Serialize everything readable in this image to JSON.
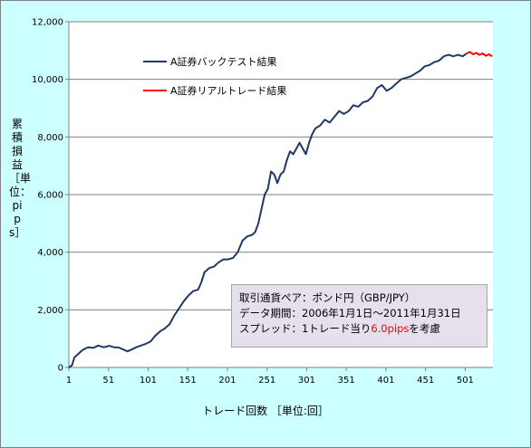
{
  "chart_data": {
    "type": "line",
    "title": "",
    "xlabel": "トレード回数 ［単位:回］",
    "ylabel": "累積損益 ［単位：pips］",
    "xlim": [
      1,
      536
    ],
    "ylim": [
      0,
      12000
    ],
    "x_ticks": [
      1,
      51,
      101,
      151,
      201,
      251,
      301,
      351,
      401,
      451,
      501
    ],
    "y_ticks": [
      0,
      2000,
      4000,
      6000,
      8000,
      10000,
      12000
    ],
    "y_tick_labels": [
      "0",
      "2,000",
      "4,000",
      "6,000",
      "8,000",
      "10,000",
      "12,000"
    ],
    "grid": "horizontal",
    "legend_position": "top-left",
    "series": [
      {
        "name": "A証券バックテスト結果",
        "color": "#1f3864",
        "points": [
          [
            1,
            0
          ],
          [
            5,
            80
          ],
          [
            8,
            350
          ],
          [
            12,
            450
          ],
          [
            18,
            600
          ],
          [
            25,
            700
          ],
          [
            32,
            680
          ],
          [
            38,
            760
          ],
          [
            45,
            700
          ],
          [
            52,
            750
          ],
          [
            58,
            700
          ],
          [
            64,
            690
          ],
          [
            70,
            620
          ],
          [
            75,
            560
          ],
          [
            80,
            620
          ],
          [
            86,
            700
          ],
          [
            92,
            760
          ],
          [
            98,
            820
          ],
          [
            104,
            900
          ],
          [
            110,
            1100
          ],
          [
            116,
            1250
          ],
          [
            122,
            1350
          ],
          [
            128,
            1500
          ],
          [
            134,
            1800
          ],
          [
            140,
            2050
          ],
          [
            146,
            2300
          ],
          [
            152,
            2500
          ],
          [
            158,
            2650
          ],
          [
            164,
            2700
          ],
          [
            168,
            2950
          ],
          [
            172,
            3300
          ],
          [
            178,
            3450
          ],
          [
            184,
            3500
          ],
          [
            190,
            3650
          ],
          [
            196,
            3750
          ],
          [
            202,
            3750
          ],
          [
            208,
            3800
          ],
          [
            214,
            4000
          ],
          [
            220,
            4400
          ],
          [
            226,
            4550
          ],
          [
            232,
            4600
          ],
          [
            236,
            4700
          ],
          [
            240,
            5000
          ],
          [
            244,
            5500
          ],
          [
            248,
            6000
          ],
          [
            252,
            6200
          ],
          [
            256,
            6800
          ],
          [
            260,
            6700
          ],
          [
            264,
            6400
          ],
          [
            268,
            6700
          ],
          [
            272,
            6800
          ],
          [
            276,
            7200
          ],
          [
            280,
            7500
          ],
          [
            284,
            7400
          ],
          [
            288,
            7600
          ],
          [
            292,
            7800
          ],
          [
            296,
            7600
          ],
          [
            300,
            7400
          ],
          [
            304,
            7800
          ],
          [
            308,
            8100
          ],
          [
            312,
            8300
          ],
          [
            318,
            8400
          ],
          [
            324,
            8600
          ],
          [
            330,
            8500
          ],
          [
            336,
            8700
          ],
          [
            342,
            8900
          ],
          [
            348,
            8800
          ],
          [
            354,
            8900
          ],
          [
            360,
            9100
          ],
          [
            366,
            9050
          ],
          [
            372,
            9200
          ],
          [
            378,
            9250
          ],
          [
            384,
            9400
          ],
          [
            390,
            9700
          ],
          [
            396,
            9800
          ],
          [
            402,
            9600
          ],
          [
            408,
            9700
          ],
          [
            414,
            9850
          ],
          [
            420,
            10000
          ],
          [
            426,
            10050
          ],
          [
            432,
            10100
          ],
          [
            438,
            10200
          ],
          [
            444,
            10300
          ],
          [
            450,
            10450
          ],
          [
            456,
            10500
          ],
          [
            462,
            10600
          ],
          [
            468,
            10650
          ],
          [
            474,
            10800
          ],
          [
            480,
            10850
          ],
          [
            486,
            10800
          ],
          [
            492,
            10850
          ],
          [
            498,
            10800
          ],
          [
            503,
            10900
          ]
        ]
      },
      {
        "name": "A証券リアルトレード結果",
        "color": "#ff0000",
        "points": [
          [
            503,
            10900
          ],
          [
            507,
            10950
          ],
          [
            511,
            10870
          ],
          [
            515,
            10920
          ],
          [
            519,
            10850
          ],
          [
            523,
            10900
          ],
          [
            527,
            10820
          ],
          [
            531,
            10870
          ],
          [
            535,
            10800
          ]
        ]
      }
    ]
  },
  "info": {
    "line1": "取引通貨ペア：ポンド円（GBP/JPY）",
    "line2": "データ期間：2006年1月1日～2011年1月31日",
    "line3_pre": "スプレッド：1トレード当り",
    "line3_hl": "6.0pips",
    "line3_post": "を考慮"
  }
}
